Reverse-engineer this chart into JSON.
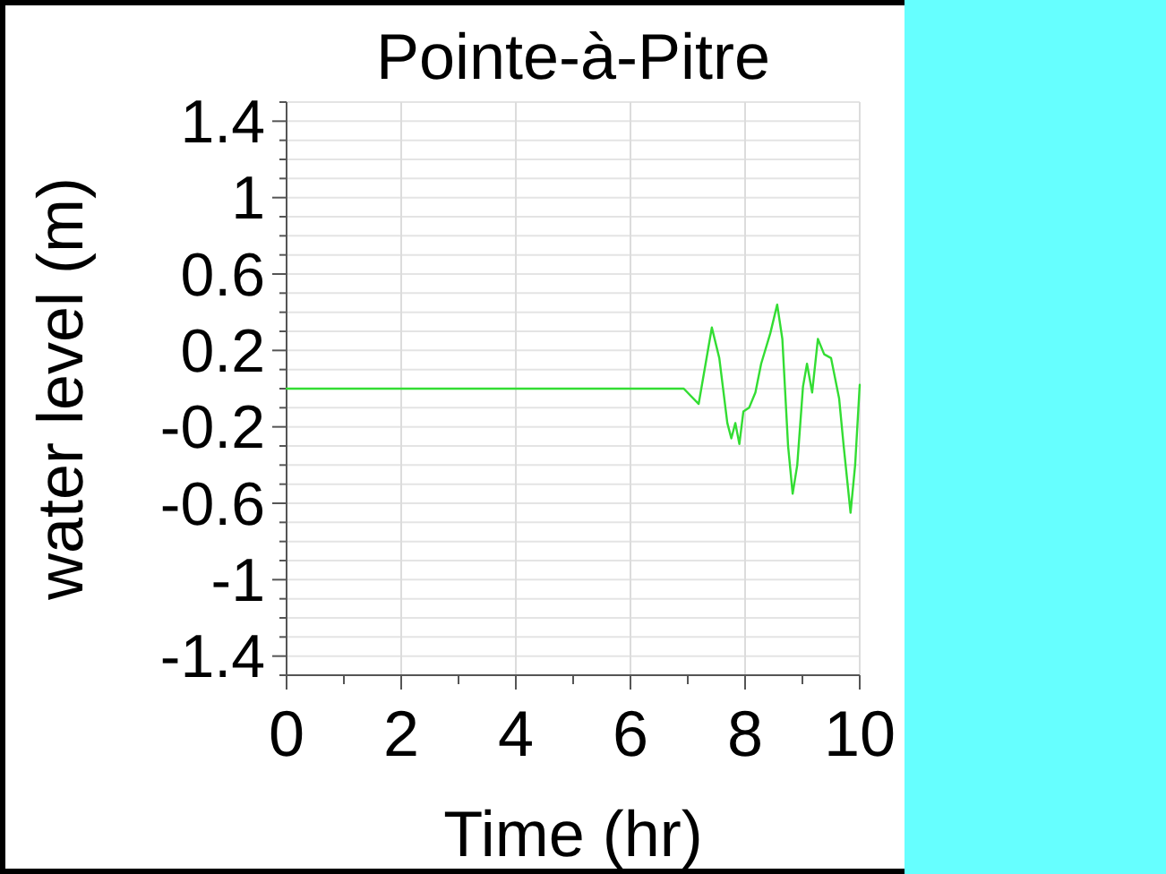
{
  "chart_data": {
    "type": "line",
    "title": "Pointe-à-Pitre",
    "xlabel": "Time (hr)",
    "ylabel": "water level (m)",
    "xlim": [
      0,
      10
    ],
    "ylim": [
      -1.5,
      1.5
    ],
    "xticks": [
      0,
      {
        "value": 1,
        "label": null
      },
      2,
      {
        "value": 3,
        "label": null
      },
      4,
      {
        "value": 5,
        "label": null
      },
      6,
      {
        "value": 7,
        "label": null
      },
      8,
      {
        "value": 9,
        "label": null
      },
      10
    ],
    "yticks": [
      {
        "value": -1.5,
        "label": null
      },
      -1.4,
      {
        "value": -1.3,
        "label": null
      },
      {
        "value": -1.2,
        "label": null
      },
      {
        "value": -1.1,
        "label": null
      },
      -1,
      {
        "value": -0.9,
        "label": null
      },
      {
        "value": -0.8,
        "label": null
      },
      {
        "value": -0.7,
        "label": null
      },
      -0.6,
      {
        "value": -0.5,
        "label": null
      },
      {
        "value": -0.4,
        "label": null
      },
      {
        "value": -0.3,
        "label": null
      },
      -0.2,
      {
        "value": -0.1,
        "label": null
      },
      {
        "value": 0,
        "label": null
      },
      {
        "value": 0.1,
        "label": null
      },
      0.2,
      {
        "value": 0.3,
        "label": null
      },
      {
        "value": 0.4,
        "label": null
      },
      {
        "value": 0.5,
        "label": null
      },
      0.6,
      {
        "value": 0.7,
        "label": null
      },
      {
        "value": 0.8,
        "label": null
      },
      {
        "value": 0.9,
        "label": null
      },
      1,
      {
        "value": 1.1,
        "label": null
      },
      {
        "value": 1.2,
        "label": null
      },
      {
        "value": 1.3,
        "label": null
      },
      1.4,
      {
        "value": 1.5,
        "label": null
      }
    ],
    "grid": true,
    "marker": "none",
    "line_style": "solid",
    "series": [
      {
        "color": "#33dd33",
        "x": [
          0,
          6.93,
          7.19,
          7.42,
          7.55,
          7.69,
          7.76,
          7.83,
          7.9,
          7.97,
          8.07,
          8.18,
          8.28,
          8.44,
          8.56,
          8.65,
          8.75,
          8.83,
          8.91,
          9.01,
          9.08,
          9.17,
          9.27,
          9.38,
          9.5,
          9.64,
          9.72,
          9.84,
          9.92,
          10
        ],
        "values": [
          0,
          0,
          -0.08,
          0.32,
          0.16,
          -0.18,
          -0.26,
          -0.18,
          -0.29,
          -0.12,
          -0.1,
          -0.02,
          0.13,
          0.29,
          0.44,
          0.26,
          -0.3,
          -0.55,
          -0.4,
          0.01,
          0.13,
          -0.02,
          0.26,
          0.18,
          0.16,
          -0.05,
          -0.3,
          -0.65,
          -0.4,
          0.02
        ]
      }
    ]
  }
}
